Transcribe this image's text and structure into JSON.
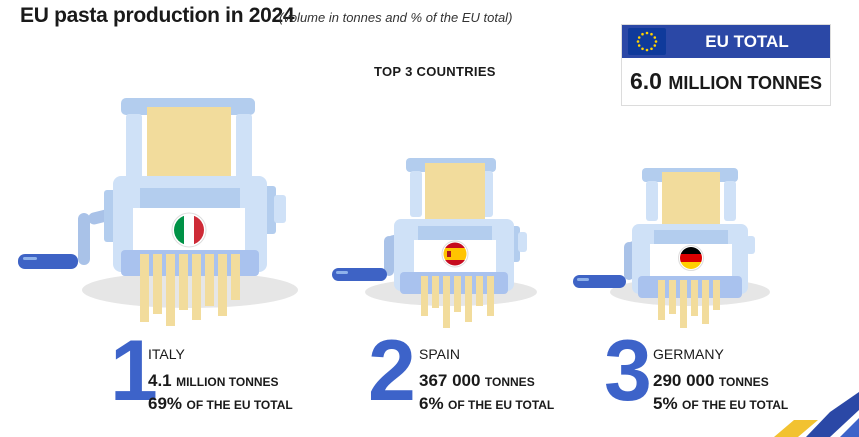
{
  "header": {
    "title": "EU pasta production in 2024",
    "subtitle": "(volume in tonnes and % of the EU total)"
  },
  "eu_total": {
    "label": "EU TOTAL",
    "value": "6.0",
    "unit": "MILLION TONNES"
  },
  "top3_label": "TOP 3 COUNTRIES",
  "countries": [
    {
      "rank": "1",
      "name": "ITALY",
      "volume": "4.1",
      "volume_unit": "MILLION TONNES",
      "share": "69%",
      "share_label": "OF THE EU TOTAL",
      "flag_colors": [
        "#009246",
        "#ffffff",
        "#ce2b37"
      ]
    },
    {
      "rank": "2",
      "name": "SPAIN",
      "volume": "367 000",
      "volume_unit": "TONNES",
      "share": "6%",
      "share_label": "OF THE EU TOTAL",
      "flag_colors": [
        "#c60b1e",
        "#ffc400",
        "#c60b1e"
      ]
    },
    {
      "rank": "3",
      "name": "GERMANY",
      "volume": "290 000",
      "volume_unit": "TONNES",
      "share": "5%",
      "share_label": "OF THE EU TOTAL",
      "flag_colors": [
        "#000000",
        "#dd0000",
        "#ffce00"
      ]
    }
  ],
  "colors": {
    "accent_blue": "#3d63c9",
    "eu_header": "#2b48a6",
    "machine_light": "#cfe1f7",
    "machine_mid": "#b3cdee",
    "pasta": "#f2dc9c",
    "shadow": "#e5e5e5"
  }
}
